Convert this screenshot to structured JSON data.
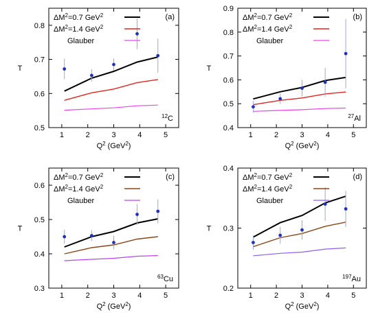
{
  "figure": {
    "labels": {
      "xlabel_main": "Q",
      "xlabel_sup": "2",
      "xlabel_unit_open": " (GeV",
      "xlabel_unit_sup": "2",
      "xlabel_unit_close": ")",
      "ylabel": "T",
      "legend_dm_prefix": "ΔM",
      "legend_dm_sup": "2",
      "legend_dm1_mid": "=0.7 GeV",
      "legend_dm2_mid": "=1.4 GeV",
      "legend_unit_sup": "2",
      "legend_glauber": "Glauber"
    }
  },
  "chart_data": [
    {
      "type": "line",
      "tag": "(a)",
      "nucleus_mass": "12",
      "nucleus_symbol": "C",
      "xlim": [
        0.5,
        5.5
      ],
      "ylim": [
        0.5,
        0.85
      ],
      "xticks": [
        "1",
        "2",
        "3",
        "4",
        "5"
      ],
      "yticks": [
        "0.5",
        "0.6",
        "0.7",
        "0.8"
      ],
      "grid": false,
      "legend_position": "top-right",
      "x": [
        1.1,
        2.15,
        3.0,
        3.9,
        4.7
      ],
      "series": [
        {
          "key": "dm07",
          "color": "#000000",
          "values": [
            0.607,
            0.645,
            0.665,
            0.692,
            0.707
          ]
        },
        {
          "key": "dm14",
          "color": "#e8231c",
          "values": [
            0.58,
            0.602,
            0.613,
            0.632,
            0.641
          ]
        },
        {
          "key": "glauber",
          "color": "#ee40ee",
          "values": [
            0.551,
            0.555,
            0.558,
            0.564,
            0.566
          ]
        }
      ],
      "points": {
        "x": [
          1.1,
          2.15,
          3.0,
          3.9,
          4.7
        ],
        "y": [
          0.672,
          0.653,
          0.685,
          0.775,
          0.711
        ],
        "err": [
          0.03,
          0.018,
          0.018,
          0.045,
          0.05
        ]
      }
    },
    {
      "type": "line",
      "tag": "(b)",
      "nucleus_mass": "27",
      "nucleus_symbol": "Al",
      "xlim": [
        0.5,
        5.5
      ],
      "ylim": [
        0.4,
        0.9
      ],
      "xticks": [
        "1",
        "2",
        "3",
        "4",
        "5"
      ],
      "yticks": [
        "0.4",
        "0.5",
        "0.6",
        "0.7",
        "0.8",
        "0.9"
      ],
      "grid": false,
      "legend_position": "top-right",
      "x": [
        1.1,
        2.15,
        3.0,
        3.9,
        4.7
      ],
      "series": [
        {
          "key": "dm07",
          "color": "#000000",
          "values": [
            0.52,
            0.55,
            0.568,
            0.597,
            0.61
          ]
        },
        {
          "key": "dm14",
          "color": "#e8231c",
          "values": [
            0.496,
            0.514,
            0.524,
            0.541,
            0.549
          ]
        },
        {
          "key": "glauber",
          "color": "#ee40ee",
          "values": [
            0.468,
            0.472,
            0.475,
            0.48,
            0.482
          ]
        }
      ],
      "points": {
        "x": [
          1.1,
          2.15,
          3.0,
          3.9,
          4.7
        ],
        "y": [
          0.487,
          0.521,
          0.565,
          0.59,
          0.71
        ],
        "err": [
          0.025,
          0.022,
          0.035,
          0.06,
          0.145
        ]
      }
    },
    {
      "type": "line",
      "tag": "(c)",
      "nucleus_mass": "63",
      "nucleus_symbol": "Cu",
      "xlim": [
        0.5,
        5.5
      ],
      "ylim": [
        0.3,
        0.65
      ],
      "xticks": [
        "1",
        "2",
        "3",
        "4",
        "5"
      ],
      "yticks": [
        "0.3",
        "0.4",
        "0.5",
        "0.6"
      ],
      "grid": false,
      "legend_position": "top-right",
      "x": [
        1.1,
        2.15,
        3.0,
        3.9,
        4.7
      ],
      "series": [
        {
          "key": "dm07",
          "color": "#000000",
          "values": [
            0.42,
            0.45,
            0.465,
            0.49,
            0.502
          ]
        },
        {
          "key": "dm14",
          "color": "#8b4513",
          "values": [
            0.4,
            0.418,
            0.426,
            0.443,
            0.45
          ]
        },
        {
          "key": "glauber",
          "color": "#c040ee",
          "values": [
            0.38,
            0.384,
            0.387,
            0.393,
            0.395
          ]
        }
      ],
      "points": {
        "x": [
          1.1,
          2.15,
          3.0,
          3.9,
          4.7
        ],
        "y": [
          0.45,
          0.453,
          0.433,
          0.515,
          0.524
        ],
        "err": [
          0.02,
          0.016,
          0.02,
          0.03,
          0.035
        ]
      }
    },
    {
      "type": "line",
      "tag": "(d)",
      "nucleus_mass": "197",
      "nucleus_symbol": "Au",
      "xlim": [
        0.5,
        5.5
      ],
      "ylim": [
        0.2,
        0.4
      ],
      "xticks": [
        "1",
        "2",
        "3",
        "4",
        "5"
      ],
      "yticks": [
        "0.2",
        "0.3",
        "0.4"
      ],
      "grid": false,
      "legend_position": "top-right",
      "x": [
        1.1,
        2.15,
        3.0,
        3.9,
        4.7
      ],
      "series": [
        {
          "key": "dm07",
          "color": "#000000",
          "values": [
            0.285,
            0.309,
            0.321,
            0.342,
            0.353
          ]
        },
        {
          "key": "dm14",
          "color": "#8b4513",
          "values": [
            0.269,
            0.284,
            0.291,
            0.303,
            0.31
          ]
        },
        {
          "key": "glauber",
          "color": "#8b5cf6",
          "values": [
            0.254,
            0.258,
            0.26,
            0.265,
            0.267
          ]
        }
      ],
      "points": {
        "x": [
          1.1,
          2.15,
          3.0,
          3.9,
          4.7
        ],
        "y": [
          0.276,
          0.288,
          0.297,
          0.34,
          0.332
        ],
        "err": [
          0.012,
          0.014,
          0.016,
          0.028,
          0.03
        ]
      }
    }
  ]
}
